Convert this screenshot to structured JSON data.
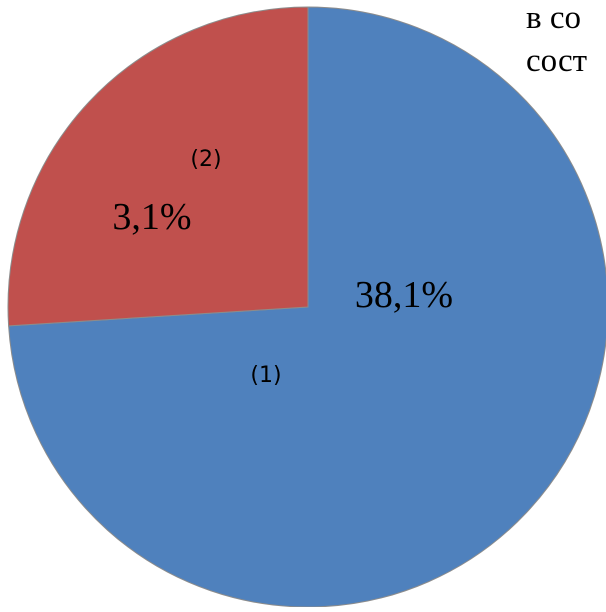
{
  "chart_data": {
    "type": "pie",
    "slices": [
      {
        "label": "(1)",
        "value": 38.1,
        "display_value": "38,1%",
        "color": "#4F81BD"
      },
      {
        "label": "(2)",
        "value": 3.1,
        "display_value": "3,1%",
        "color": "#C0504D"
      }
    ],
    "shown_share_percent": [
      74,
      26
    ],
    "slice_outline_color": "#8C8C8C"
  },
  "clipped_text": {
    "line1": "в со",
    "line2": "сост"
  }
}
